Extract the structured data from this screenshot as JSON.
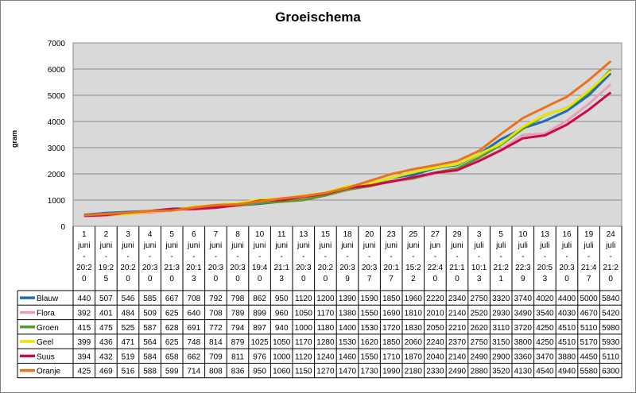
{
  "chart_data": {
    "type": "line",
    "title": "Groeischema",
    "xlabel": "",
    "ylabel": "gram",
    "ylim": [
      0,
      7000
    ],
    "y_ticks": [
      0,
      1000,
      2000,
      3000,
      4000,
      5000,
      6000,
      7000
    ],
    "grid": "horizontal",
    "legend": "data-table",
    "categories": [
      [
        "1",
        "juni",
        "-",
        "20:2",
        "0"
      ],
      [
        "2",
        "juni",
        "-",
        "19:2",
        "5"
      ],
      [
        "3",
        "juni",
        "-",
        "20:2",
        "0"
      ],
      [
        "4",
        "juni",
        "-",
        "20:3",
        "0"
      ],
      [
        "5",
        "juni",
        "-",
        "21:3",
        "0"
      ],
      [
        "6",
        "juni",
        "-",
        "20:1",
        "3"
      ],
      [
        "7",
        "juni",
        "-",
        "20:3",
        "0"
      ],
      [
        "8",
        "juni",
        "-",
        "20:3",
        "0"
      ],
      [
        "10",
        "juni",
        "-",
        "19:4",
        "0"
      ],
      [
        "11",
        "juni",
        "-",
        "21:1",
        "3"
      ],
      [
        "13",
        "juni",
        "-",
        "20:3",
        "0"
      ],
      [
        "15",
        "juni",
        "-",
        "20:2",
        "0"
      ],
      [
        "18",
        "juni",
        "-",
        "20:3",
        "9"
      ],
      [
        "20",
        "juni",
        "-",
        "20:3",
        "7"
      ],
      [
        "23",
        "juni",
        "-",
        "20:1",
        "7"
      ],
      [
        "25",
        "juni",
        "-",
        "15:2",
        "2"
      ],
      [
        "27",
        "jun",
        "-",
        "22:4",
        "0"
      ],
      [
        "29",
        "juni",
        "-",
        "21:1",
        "0"
      ],
      [
        "3",
        "juli",
        "-",
        "10:1",
        "3"
      ],
      [
        "5",
        "juli",
        "-",
        "21:2",
        "1"
      ],
      [
        "10",
        "juli",
        "-",
        "22:3",
        "9"
      ],
      [
        "13",
        "juli",
        "-",
        "20:5",
        "3"
      ],
      [
        "16",
        "juli",
        "-",
        "20:3",
        "0"
      ],
      [
        "19",
        "juli",
        "-",
        "21:4",
        "7"
      ],
      [
        "24",
        "juli",
        "-",
        "21:2",
        "0"
      ]
    ],
    "series": [
      {
        "name": "Blauw",
        "color": "#1f6fb5",
        "values": [
          440,
          507,
          546,
          585,
          667,
          708,
          792,
          798,
          862,
          950,
          1120,
          1200,
          1390,
          1590,
          1850,
          1960,
          2220,
          2340,
          2750,
          3320,
          3740,
          4020,
          4400,
          5000,
          5840
        ]
      },
      {
        "name": "Flora",
        "color": "#e8a0b8",
        "values": [
          392,
          401,
          484,
          509,
          625,
          640,
          708,
          789,
          899,
          960,
          1050,
          1170,
          1380,
          1550,
          1690,
          1810,
          2010,
          2140,
          2520,
          2930,
          3490,
          3540,
          4030,
          4670,
          5420
        ]
      },
      {
        "name": "Groen",
        "color": "#5a9a2a",
        "values": [
          415,
          475,
          525,
          587,
          628,
          691,
          772,
          794,
          897,
          940,
          1000,
          1180,
          1400,
          1530,
          1720,
          1830,
          2050,
          2210,
          2620,
          3110,
          3720,
          4250,
          4510,
          5110,
          5980
        ]
      },
      {
        "name": "Geel",
        "color": "#e6e600",
        "values": [
          399,
          436,
          471,
          564,
          625,
          748,
          814,
          879,
          1025,
          1050,
          1170,
          1280,
          1530,
          1620,
          1850,
          2060,
          2240,
          2370,
          2750,
          3150,
          3800,
          4250,
          4510,
          5170,
          5930
        ]
      },
      {
        "name": "Suus",
        "color": "#cc0a4a",
        "values": [
          394,
          432,
          519,
          584,
          658,
          662,
          709,
          811,
          976,
          1000,
          1120,
          1240,
          1460,
          1550,
          1710,
          1870,
          2040,
          2140,
          2490,
          2900,
          3360,
          3470,
          3880,
          4450,
          5110
        ]
      },
      {
        "name": "Oranje",
        "color": "#e8731c",
        "values": [
          425,
          469,
          516,
          588,
          599,
          714,
          808,
          836,
          950,
          1060,
          1150,
          1270,
          1470,
          1730,
          1990,
          2180,
          2330,
          2490,
          2880,
          3520,
          4130,
          4540,
          4940,
          5580,
          6300
        ]
      }
    ]
  }
}
